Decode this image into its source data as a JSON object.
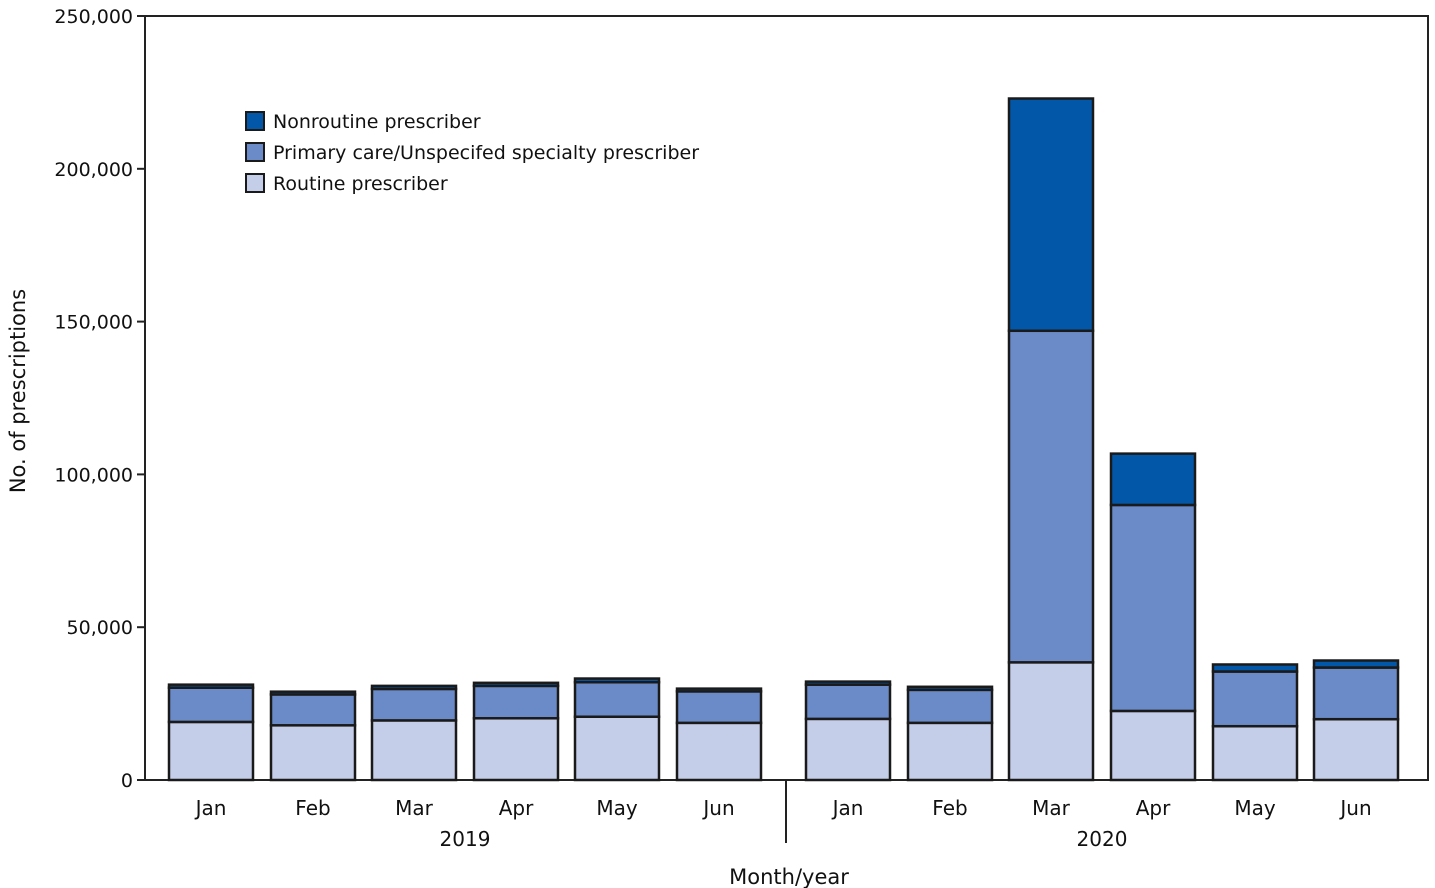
{
  "chart_data": {
    "type": "bar",
    "stacked": true,
    "xlabel": "Month/year",
    "ylabel": "No. of prescriptions",
    "ylim": [
      0,
      250000
    ],
    "yticks": [
      0,
      50000,
      100000,
      150000,
      200000,
      250000
    ],
    "ytick_labels": [
      "0",
      "50,000",
      "100,000",
      "150,000",
      "200,000",
      "250,000"
    ],
    "groups": [
      {
        "label": "2019",
        "categories": [
          "Jan",
          "Feb",
          "Mar",
          "Apr",
          "May",
          "Jun"
        ]
      },
      {
        "label": "2020",
        "categories": [
          "Jan",
          "Feb",
          "Mar",
          "Apr",
          "May",
          "Jun"
        ]
      }
    ],
    "series": [
      {
        "name": "Routine prescriber",
        "color": "#c5cee8",
        "values": [
          19000,
          17900,
          19500,
          20200,
          20700,
          18700,
          20000,
          18700,
          38500,
          22600,
          17600,
          19900
        ]
      },
      {
        "name": "Primary care/Unspecifed specialty prescriber",
        "color": "#6a8bc7",
        "values": [
          11200,
          10100,
          10300,
          10600,
          11300,
          10300,
          11200,
          10800,
          108500,
          67400,
          17900,
          16900
        ]
      },
      {
        "name": "Nonroutine prescriber",
        "color": "#0357a8",
        "values": [
          1000,
          900,
          1000,
          1000,
          1200,
          900,
          1000,
          1000,
          76000,
          16800,
          2300,
          2300
        ]
      }
    ],
    "legend_order": [
      "Nonroutine prescriber",
      "Primary care/Unspecifed specialty prescriber",
      "Routine prescriber"
    ],
    "legend_position": "top-left",
    "grid": false
  }
}
